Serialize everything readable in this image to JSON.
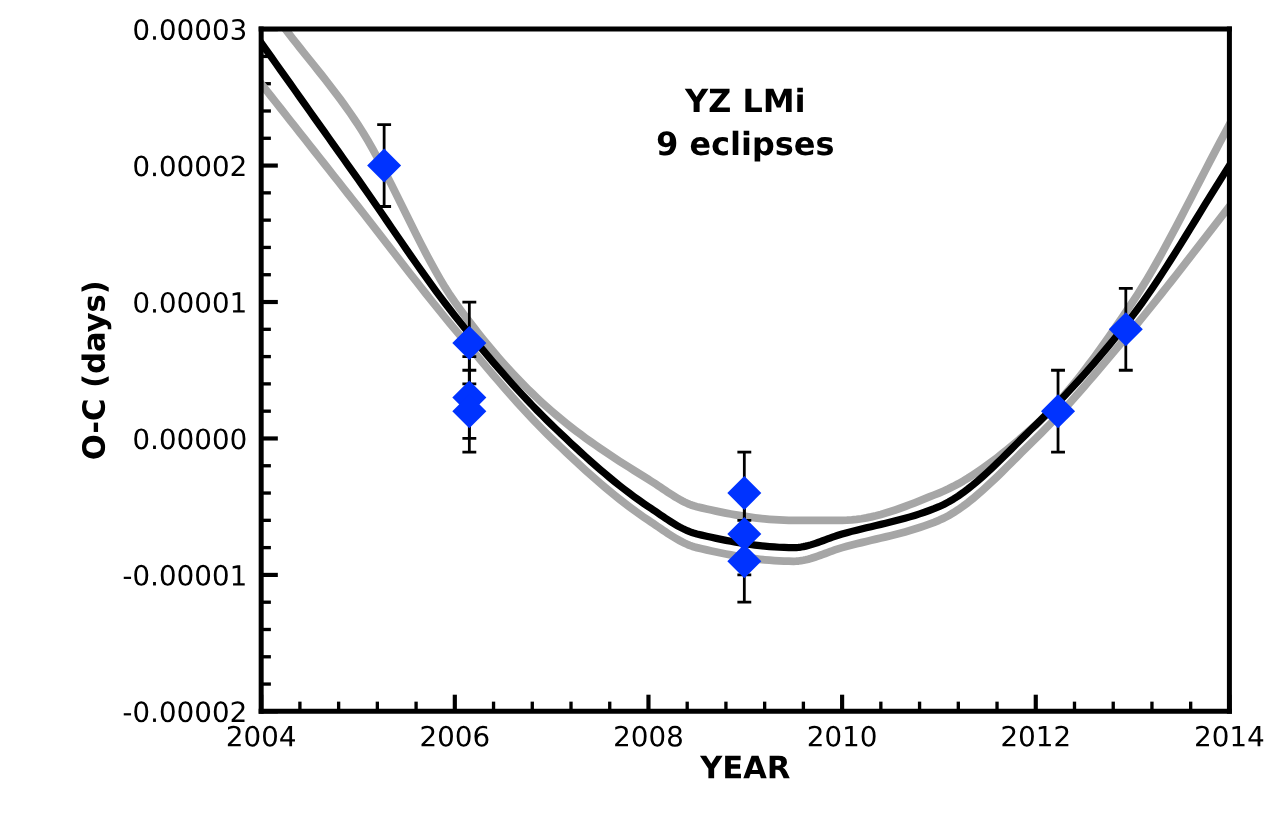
{
  "chart_data": {
    "type": "scatter",
    "xlabel": "YEAR",
    "ylabel": "O-C (days)",
    "annotations": [
      "YZ LMi\n9 eclipses"
    ],
    "xlim": [
      2004,
      2014
    ],
    "xticks": [
      2004,
      2006,
      2008,
      2010,
      2012,
      2014
    ],
    "ylim": [
      -2e-05,
      3e-05
    ],
    "yticks": [
      {
        "value": -2e-05,
        "label": "-0.00002"
      },
      {
        "value": -1e-05,
        "label": "-0.00001"
      },
      {
        "value": 0,
        "label": "0.00000"
      },
      {
        "value": 1e-05,
        "label": "0.00001"
      },
      {
        "value": 2e-05,
        "label": "0.00002"
      },
      {
        "value": 3e-05,
        "label": "0.00003"
      }
    ],
    "grid": false,
    "series": [
      {
        "type": "line",
        "color": "#a6a6a6",
        "x": [
          2004.25,
          2005,
          2006,
          2007,
          2008,
          2008.5,
          2009.5,
          2010,
          2011,
          2012,
          2013,
          2014
        ],
        "values": [
          3e-05,
          2.3e-05,
          1e-05,
          2e-06,
          -3e-06,
          -5e-06,
          -6e-06,
          -6e-06,
          -4e-06,
          1e-06,
          1e-05,
          2.3e-05
        ]
      },
      {
        "type": "line",
        "color": "#a6a6a6",
        "x": [
          2004,
          2005,
          2006,
          2007,
          2008,
          2008.5,
          2009.5,
          2010,
          2011,
          2012,
          2013,
          2014
        ],
        "values": [
          2.6e-05,
          1.7e-05,
          8e-06,
          0,
          -6e-06,
          -8e-06,
          -9e-06,
          -8e-06,
          -6e-06,
          0,
          8e-06,
          1.7e-05
        ]
      },
      {
        "type": "line",
        "color": "#000000",
        "x": [
          2004,
          2005,
          2006,
          2007,
          2008,
          2008.5,
          2009.5,
          2010,
          2011,
          2012,
          2013,
          2014
        ],
        "values": [
          2.9e-05,
          1.9e-05,
          9e-06,
          1e-06,
          -5e-06,
          -7e-06,
          -8e-06,
          -7e-06,
          -5e-06,
          1e-06,
          9e-06,
          2e-05
        ]
      },
      {
        "type": "scatter",
        "color": "#0033ff",
        "marker": "diamond",
        "x": [
          2005.27,
          2006.15,
          2006.15,
          2006.15,
          2008.99,
          2008.99,
          2008.99,
          2012.23,
          2012.93
        ],
        "values": [
          2e-05,
          7e-06,
          3e-06,
          2e-06,
          -4e-06,
          -7e-06,
          -9e-06,
          2e-06,
          8e-06
        ],
        "errors": [
          3e-06,
          3e-06,
          3e-06,
          3e-06,
          3e-06,
          3e-06,
          3e-06,
          3e-06,
          3e-06
        ]
      }
    ]
  }
}
